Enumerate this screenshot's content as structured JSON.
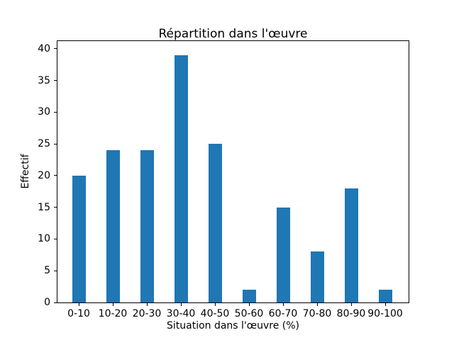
{
  "chart_data": {
    "type": "bar",
    "title": "Répartition dans l'œuvre",
    "xlabel": "Situation dans l'œuvre (%)",
    "ylabel": "Effectif",
    "categories": [
      "0-10",
      "10-20",
      "20-30",
      "30-40",
      "40-50",
      "50-60",
      "60-70",
      "70-80",
      "80-90",
      "90-100"
    ],
    "values": [
      20,
      24,
      24,
      39,
      25,
      2,
      15,
      8,
      18,
      2
    ],
    "yticks": [
      0,
      5,
      10,
      15,
      20,
      25,
      30,
      35,
      40
    ],
    "ylim": [
      0,
      41.2
    ],
    "bar_color": "#1f77b4",
    "grid": "off",
    "legend": "none"
  }
}
